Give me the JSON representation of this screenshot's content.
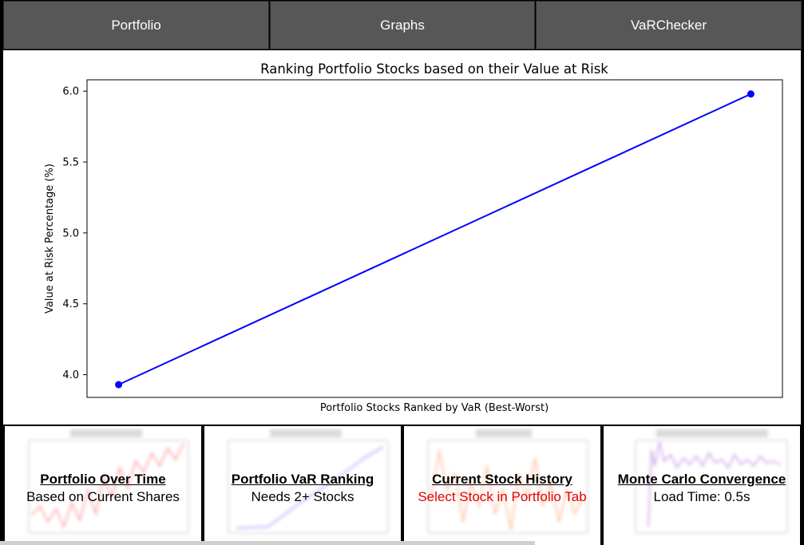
{
  "tabs": [
    {
      "label": "Portfolio"
    },
    {
      "label": "Graphs"
    },
    {
      "label": "VaRChecker"
    }
  ],
  "chart_data": {
    "type": "line",
    "title": "Ranking Portfolio Stocks based on their Value at Risk",
    "xlabel": "Portfolio Stocks Ranked by VaR (Best-Worst)",
    "ylabel": "Value at Risk Percentage (%)",
    "x": [
      0,
      1
    ],
    "series": [
      {
        "values": [
          3.93,
          5.98
        ],
        "color": "#0000ff"
      }
    ],
    "yticks": [
      "4.0",
      "4.5",
      "5.0",
      "5.5",
      "6.0"
    ],
    "ylim": [
      3.84,
      6.08
    ],
    "grid": false
  },
  "cards": [
    {
      "title": "Portfolio Over Time",
      "subtitle": "Based on Current Shares",
      "thumb_color": "#ff6a6a"
    },
    {
      "title": "Portfolio VaR Ranking",
      "subtitle": "Needs 2+ Stocks",
      "thumb_color": "#7a7aff"
    },
    {
      "title": "Current Stock History",
      "subtitle": "Select Stock in Portfolio Tab",
      "thumb_color": "#ff9a6a"
    },
    {
      "title": "Monte Carlo Convergence",
      "subtitle": "Load Time: 0.5s",
      "thumb_color": "#b46ae0"
    }
  ]
}
